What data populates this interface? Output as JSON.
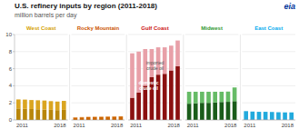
{
  "title": "U.S. refinery inputs by region (2011-2018)",
  "subtitle": "million barrels per day",
  "annotations": [
    "eia"
  ],
  "chart_data": [
    {
      "type": "bar",
      "title": "West Coast",
      "color": "#d4a000",
      "stacked": true,
      "grid": true,
      "tick_labels": true,
      "categories": [
        "2011",
        null,
        null,
        null,
        null,
        null,
        null,
        "2018"
      ],
      "series": [
        {
          "color": "#b8860b",
          "values": [
            1.35,
            1.3,
            1.28,
            1.25,
            1.22,
            1.18,
            1.15,
            1.18
          ]
        },
        {
          "color": "#daa520",
          "values": [
            1.05,
            1.08,
            1.05,
            1.05,
            1.05,
            1.02,
            1.0,
            1.05
          ]
        }
      ],
      "ylim": [
        0,
        10
      ],
      "yticks": [
        0,
        2,
        4,
        6,
        8,
        10
      ]
    },
    {
      "type": "bar",
      "title": "Rocky Mountain",
      "color": "#cc5500",
      "stacked": true,
      "grid": true,
      "tick_labels": "x",
      "categories": [
        "2011",
        null,
        null,
        null,
        null,
        null,
        null,
        "2018"
      ],
      "series": [
        {
          "color": "#cc6600",
          "values": [
            0.28,
            0.3,
            0.33,
            0.35,
            0.36,
            0.38,
            0.39,
            0.41
          ]
        },
        {
          "color": "#e89040",
          "values": [
            0.04,
            0.04,
            0.04,
            0.03,
            0.03,
            0.03,
            0.03,
            0.02
          ]
        }
      ],
      "ylim": [
        0,
        10
      ],
      "yticks": [
        0,
        2,
        4,
        6,
        8,
        10
      ]
    },
    {
      "type": "bar",
      "title": "Gulf Coast",
      "color": "#cc1111",
      "stacked": true,
      "grid": true,
      "tick_labels": "x",
      "categories": [
        "2011",
        null,
        null,
        null,
        null,
        null,
        null,
        "2018"
      ],
      "series": [
        {
          "color": "#8b1010",
          "values": [
            2.6,
            3.2,
            4.0,
            5.0,
            5.3,
            5.4,
            5.8,
            6.3
          ]
        },
        {
          "color": "#e8a0a8",
          "values": [
            5.2,
            4.8,
            4.3,
            3.3,
            3.2,
            3.1,
            2.9,
            3.0
          ]
        }
      ],
      "annotations": [
        "imported\ncrude oil",
        "domestic\ncrude oil"
      ],
      "ylim": [
        0,
        10
      ],
      "yticks": [
        0,
        2,
        4,
        6,
        8,
        10
      ]
    },
    {
      "type": "bar",
      "title": "Midwest",
      "color": "#339933",
      "stacked": true,
      "grid": true,
      "tick_labels": "x",
      "categories": [
        "2011",
        null,
        null,
        null,
        null,
        null,
        null,
        "2018"
      ],
      "series": [
        {
          "color": "#1a5c1a",
          "values": [
            1.9,
            1.95,
            2.0,
            2.0,
            2.05,
            2.1,
            2.12,
            2.2
          ]
        },
        {
          "color": "#66bb66",
          "values": [
            1.4,
            1.35,
            1.3,
            1.3,
            1.25,
            1.2,
            1.2,
            1.6
          ]
        }
      ],
      "ylim": [
        0,
        10
      ],
      "yticks": [
        0,
        2,
        4,
        6,
        8,
        10
      ]
    },
    {
      "type": "bar",
      "title": "East Coast",
      "color": "#00aaee",
      "stacked": true,
      "grid": true,
      "tick_labels": "x",
      "categories": [
        "2011",
        null,
        null,
        null,
        null,
        null,
        null,
        "2018"
      ],
      "series": [
        {
          "color": "#004488",
          "values": [
            0.05,
            0.05,
            0.05,
            0.05,
            0.05,
            0.05,
            0.05,
            0.05
          ]
        },
        {
          "color": "#22aadd",
          "values": [
            0.98,
            0.93,
            0.9,
            0.9,
            0.88,
            0.85,
            0.83,
            0.83
          ]
        }
      ],
      "ylim": [
        0,
        10
      ],
      "yticks": [
        0,
        2,
        4,
        6,
        8,
        10
      ]
    }
  ]
}
